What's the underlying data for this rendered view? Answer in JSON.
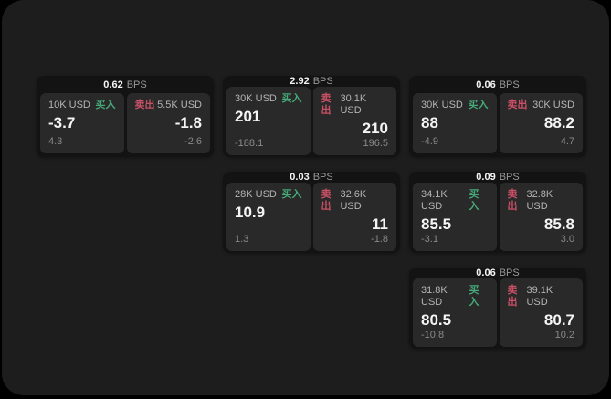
{
  "colors": {
    "page_bg": "#000000",
    "panel_bg": "#1d1d1d",
    "card_bg": "#131313",
    "tile_bg": "#292929",
    "buy_green": "#46a97a",
    "sell_red": "#c95066",
    "text_primary": "#f5f5f5",
    "text_secondary": "#b5b5b5",
    "text_muted": "#8a8a8a"
  },
  "labels": {
    "bps": "BPS",
    "buy": "买入",
    "sell": "卖出"
  },
  "cards": [
    {
      "bps": "0.62",
      "row": 1,
      "col": 1,
      "buy": {
        "amount": "10K USD",
        "value": "-3.7",
        "delta": "4.3"
      },
      "sell": {
        "amount": "5.5K USD",
        "value": "-1.8",
        "delta": "-2.6"
      }
    },
    {
      "bps": "2.92",
      "row": 1,
      "col": 2,
      "buy": {
        "amount": "30K USD",
        "value": "201",
        "delta": "-188.1"
      },
      "sell": {
        "amount": "30.1K USD",
        "value": "210",
        "delta": "196.5"
      }
    },
    {
      "bps": "0.06",
      "row": 1,
      "col": 3,
      "buy": {
        "amount": "30K USD",
        "value": "88",
        "delta": "-4.9"
      },
      "sell": {
        "amount": "30K USD",
        "value": "88.2",
        "delta": "4.7"
      }
    },
    {
      "bps": "0.03",
      "row": 2,
      "col": 2,
      "buy": {
        "amount": "28K USD",
        "value": "10.9",
        "delta": "1.3"
      },
      "sell": {
        "amount": "32.6K USD",
        "value": "11",
        "delta": "-1.8"
      }
    },
    {
      "bps": "0.09",
      "row": 2,
      "col": 3,
      "buy": {
        "amount": "34.1K USD",
        "value": "85.5",
        "delta": "-3.1"
      },
      "sell": {
        "amount": "32.8K USD",
        "value": "85.8",
        "delta": "3.0"
      }
    },
    {
      "bps": "0.06",
      "row": 3,
      "col": 3,
      "buy": {
        "amount": "31.8K USD",
        "value": "80.5",
        "delta": "-10.8"
      },
      "sell": {
        "amount": "39.1K USD",
        "value": "80.7",
        "delta": "10.2"
      }
    }
  ]
}
